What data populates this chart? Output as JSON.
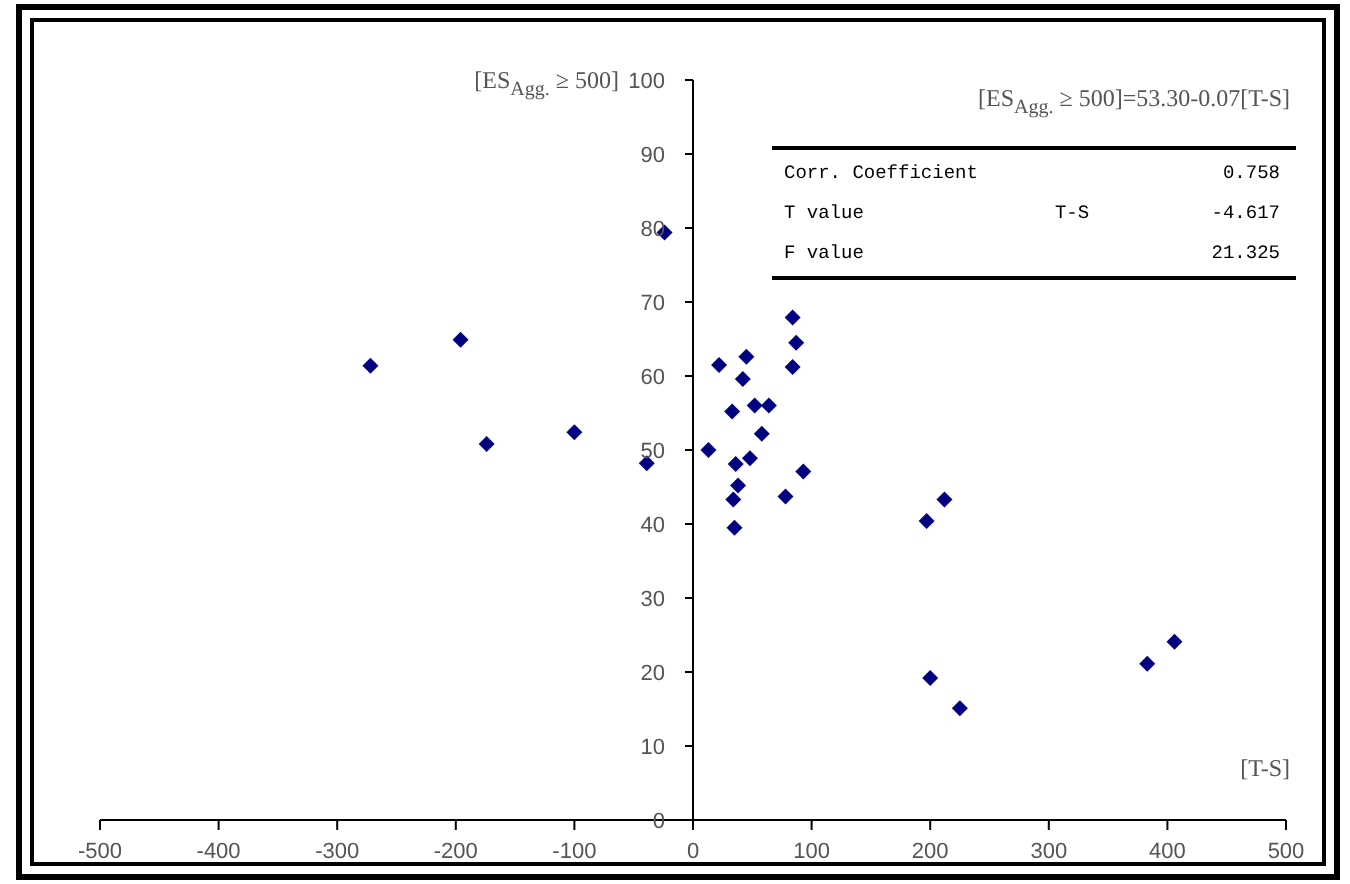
{
  "chart_data": {
    "type": "scatter",
    "xlabel": "[T-S]",
    "ylabel": "[ES$_{Agg.}$ ≥ 500]",
    "annotations": [
      "[ES$_{Agg.}$ ≥ 500]=53.30-0.07[T-S]",
      "Corr. Coefficient",
      "0.758",
      "T value",
      "T-S",
      "-4.617",
      "F value",
      "21.325"
    ],
    "x": [
      -272,
      -196,
      -174,
      -100,
      -39,
      -24,
      13,
      22,
      33,
      36,
      35,
      34,
      38,
      42,
      45,
      48,
      52,
      64,
      58,
      84,
      87,
      84,
      78,
      93,
      212,
      197,
      200,
      225,
      383,
      406
    ],
    "values": [
      61.4,
      64.9,
      50.8,
      52.4,
      48.2,
      79.4,
      50.0,
      61.5,
      55.2,
      48.1,
      39.5,
      43.3,
      45.2,
      59.6,
      62.6,
      48.9,
      56.0,
      56.0,
      52.2,
      67.9,
      64.5,
      61.2,
      43.7,
      47.1,
      43.3,
      40.4,
      19.2,
      15.1,
      21.1,
      24.1
    ],
    "color": "#000080",
    "marker": "diamond",
    "xlim": [
      -500,
      500
    ],
    "xticks": [
      -500,
      -400,
      -300,
      -200,
      -100,
      0,
      100,
      200,
      300,
      400,
      500
    ],
    "ylim": [
      0,
      100
    ],
    "yticks": [
      0,
      10,
      20,
      30,
      40,
      50,
      60,
      70,
      80,
      90,
      100
    ]
  }
}
